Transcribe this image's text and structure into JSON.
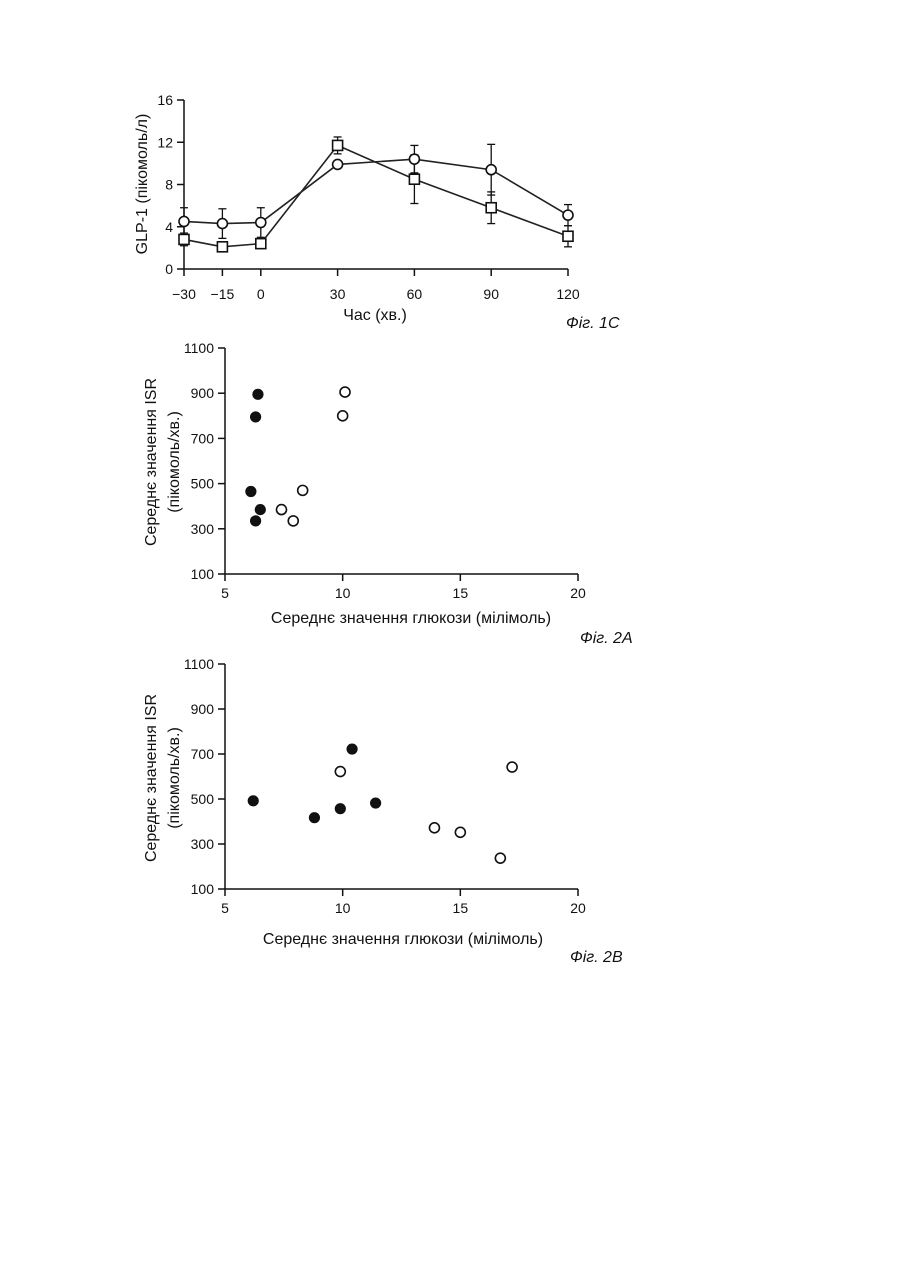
{
  "chart_data": [
    {
      "type": "line",
      "figure_label": "Фіг. 1С",
      "xlabel": "Час (хв.)",
      "ylabel": "GLP-1 (пікомоль/л)",
      "x": [
        -30,
        -15,
        0,
        30,
        60,
        90,
        120
      ],
      "x_tick_labels": [
        "−30",
        "−15",
        "0",
        "30",
        "60",
        "90",
        "120"
      ],
      "xlim": [
        -30,
        120
      ],
      "ylim": [
        0,
        16
      ],
      "y_ticks": [
        0,
        4,
        8,
        12,
        16
      ],
      "grid": false,
      "series": [
        {
          "marker": "circle",
          "values": [
            4.5,
            4.3,
            4.4,
            9.9,
            10.4,
            9.4,
            5.1
          ],
          "errors": [
            1.3,
            1.4,
            1.4,
            0,
            1.3,
            2.4,
            1.0
          ]
        },
        {
          "marker": "square",
          "values": [
            2.8,
            2.1,
            2.4,
            11.7,
            8.5,
            5.8,
            3.1
          ],
          "errors": [
            0.6,
            0,
            0,
            0.8,
            2.3,
            1.5,
            1.0
          ]
        }
      ]
    },
    {
      "type": "scatter",
      "figure_label": "Фіг. 2А",
      "xlabel": "Середнє значення глюкози (мілімоль)",
      "ylabel": [
        "Середнє значення ISR",
        "(пікомоль/хв.)"
      ],
      "xlim": [
        5,
        20
      ],
      "ylim": [
        100,
        1100
      ],
      "x_ticks": [
        5,
        10,
        15,
        20
      ],
      "y_ticks": [
        100,
        300,
        500,
        700,
        900,
        1100
      ],
      "grid": false,
      "series": [
        {
          "marker": "filled-circle",
          "x": [
            6.4,
            6.3,
            6.1,
            6.5,
            6.3
          ],
          "y": [
            895,
            795,
            465,
            385,
            335
          ]
        },
        {
          "marker": "open-circle",
          "x": [
            10.1,
            10.0,
            8.3,
            7.4,
            7.9
          ],
          "y": [
            905,
            800,
            470,
            385,
            335
          ]
        }
      ]
    },
    {
      "type": "scatter",
      "figure_label": "Фіг. 2В",
      "xlabel": "Середнє значення глюкози (мілімоль)",
      "ylabel": [
        "Середнє значення ISR",
        "(пікомоль/хв.)"
      ],
      "xlim": [
        5,
        20
      ],
      "ylim": [
        100,
        1100
      ],
      "x_ticks": [
        5,
        10,
        15,
        20
      ],
      "y_ticks": [
        100,
        300,
        500,
        700,
        900,
        1100
      ],
      "grid": false,
      "series": [
        {
          "marker": "filled-circle",
          "x": [
            6.2,
            8.8,
            9.9,
            10.4,
            11.4
          ],
          "y": [
            492,
            417,
            457,
            722,
            482
          ]
        },
        {
          "marker": "open-circle",
          "x": [
            9.9,
            13.9,
            15.0,
            16.7,
            17.2
          ],
          "y": [
            622,
            372,
            352,
            237,
            642
          ]
        }
      ]
    }
  ]
}
